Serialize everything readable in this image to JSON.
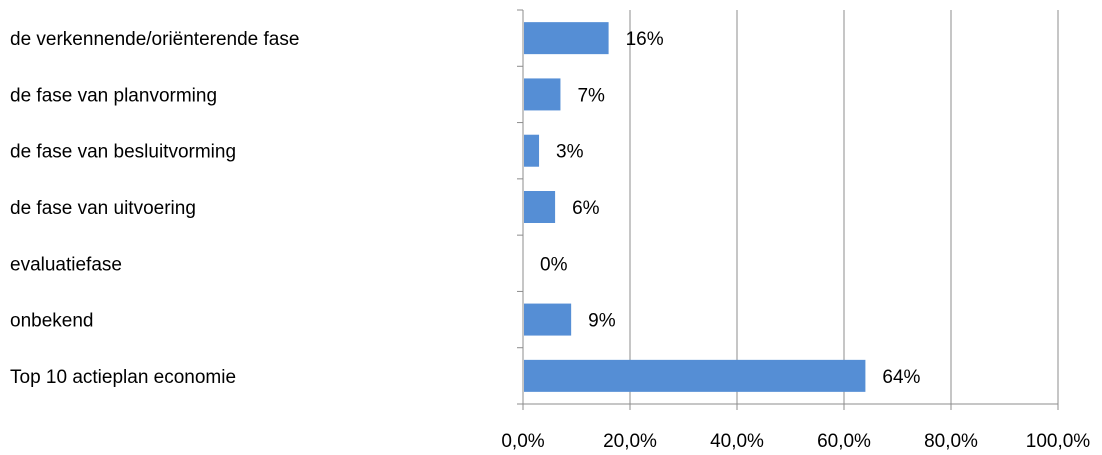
{
  "chart_data": {
    "type": "bar",
    "orientation": "horizontal",
    "categories": [
      "de verkennende/oriënterende fase",
      "de fase van planvorming",
      "de fase van besluitvorming",
      "de fase van uitvoering",
      "evaluatiefase",
      "onbekend",
      "Top 10 actieplan economie"
    ],
    "values": [
      16,
      7,
      3,
      6,
      0,
      9,
      64
    ],
    "value_labels": [
      "16%",
      "7%",
      "3%",
      "6%",
      "0%",
      "9%",
      "64%"
    ],
    "xlim": [
      0,
      100
    ],
    "x_ticks": [
      0,
      20,
      40,
      60,
      80,
      100
    ],
    "x_tick_labels": [
      "0,0%",
      "20,0%",
      "40,0%",
      "60,0%",
      "80,0%",
      "100,0%"
    ],
    "grid": "vertical",
    "bar_color": "#558ed5",
    "title": "",
    "xlabel": "",
    "ylabel": ""
  }
}
